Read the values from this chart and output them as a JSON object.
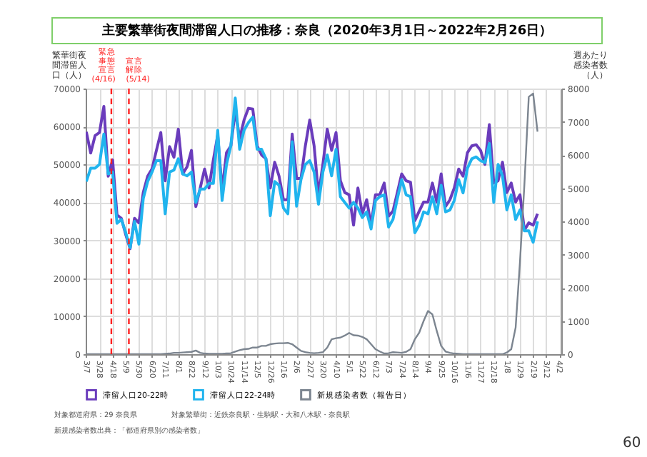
{
  "chart_data": {
    "type": "line",
    "title": "主要繁華街夜間滞留人口の推移：奈良（2020年3月1日～2022年2月26日）",
    "ylabel": "繁華街夜間滞留人口（人）",
    "y2label": "週あたり感染者数（人）",
    "x": [
      "2020-03-07",
      "2020-03-14",
      "2020-03-21",
      "2020-03-28",
      "2020-04-04",
      "2020-04-11",
      "2020-04-18",
      "2020-04-25",
      "2020-05-02",
      "2020-05-09",
      "2020-05-16",
      "2020-05-23",
      "2020-05-30",
      "2020-06-06",
      "2020-06-13",
      "2020-06-20",
      "2020-06-27",
      "2020-07-04",
      "2020-07-11",
      "2020-07-18",
      "2020-07-25",
      "2020-08-01",
      "2020-08-08",
      "2020-08-15",
      "2020-08-22",
      "2020-08-29",
      "2020-09-05",
      "2020-09-12",
      "2020-09-19",
      "2020-09-26",
      "2020-10-03",
      "2020-10-10",
      "2020-10-17",
      "2020-10-24",
      "2020-10-31",
      "2020-11-07",
      "2020-11-14",
      "2020-11-21",
      "2020-11-28",
      "2020-12-05",
      "2020-12-12",
      "2020-12-19",
      "2020-12-26",
      "2021-01-02",
      "2021-01-09",
      "2021-01-16",
      "2021-01-23",
      "2021-01-30",
      "2021-02-06",
      "2021-02-13",
      "2021-02-20",
      "2021-02-27",
      "2021-03-06",
      "2021-03-13",
      "2021-03-20",
      "2021-03-27",
      "2021-04-03",
      "2021-04-10",
      "2021-04-17",
      "2021-04-24",
      "2021-05-01",
      "2021-05-08",
      "2021-05-15",
      "2021-05-22",
      "2021-05-29",
      "2021-06-05",
      "2021-06-12",
      "2021-06-19",
      "2021-06-26",
      "2021-07-03",
      "2021-07-10",
      "2021-07-17",
      "2021-07-24",
      "2021-07-31",
      "2021-08-07",
      "2021-08-14",
      "2021-08-21",
      "2021-08-28",
      "2021-09-04",
      "2021-09-11",
      "2021-09-18",
      "2021-09-25",
      "2021-10-02",
      "2021-10-09",
      "2021-10-16",
      "2021-10-23",
      "2021-10-30",
      "2021-11-06",
      "2021-11-13",
      "2021-11-20",
      "2021-11-27",
      "2021-12-04",
      "2021-12-11",
      "2021-12-18",
      "2021-12-25",
      "2022-01-01",
      "2022-01-08",
      "2022-01-15",
      "2022-01-22",
      "2022-01-29",
      "2022-02-05",
      "2022-02-12",
      "2022-02-19",
      "2022-02-26"
    ],
    "series": [
      {
        "name": "滞留人口20-22時",
        "color": "#6a3cbc",
        "values": [
          58600,
          53000,
          57600,
          58400,
          65300,
          46900,
          51200,
          36700,
          35800,
          31500,
          27800,
          35800,
          34600,
          42600,
          46900,
          48800,
          53700,
          58400,
          45700,
          54700,
          51900,
          59300,
          47500,
          49400,
          53700,
          38900,
          43800,
          48800,
          43800,
          51200,
          57700,
          43200,
          53100,
          54900,
          64200,
          56800,
          61700,
          64800,
          64600,
          54900,
          52500,
          51500,
          43800,
          50600,
          46900,
          40700,
          40700,
          58000,
          46300,
          46300,
          54900,
          61700,
          54900,
          42000,
          50000,
          59300,
          53700,
          58400,
          45700,
          42600,
          42000,
          34000,
          43800,
          37000,
          40700,
          34000,
          42000,
          42000,
          45100,
          36400,
          37700,
          42600,
          47500,
          45700,
          45300,
          35200,
          37700,
          40100,
          40100,
          45100,
          40100,
          47500,
          38900,
          40700,
          43800,
          48800,
          46900,
          53100,
          54900,
          55200,
          53700,
          50000,
          60500,
          45100,
          45700,
          50600,
          42600,
          45100,
          40100,
          42000,
          32700,
          34600,
          34000,
          37000
        ]
      },
      {
        "name": "滞留人口22-24時",
        "color": "#20b4ee",
        "values": [
          45500,
          49000,
          49000,
          50000,
          58000,
          47500,
          48000,
          34500,
          35500,
          32000,
          28000,
          35000,
          29000,
          41000,
          45500,
          48000,
          51000,
          51000,
          37000,
          48000,
          48500,
          51500,
          47500,
          47000,
          48000,
          40000,
          43500,
          43500,
          45000,
          45000,
          59000,
          40500,
          50000,
          55000,
          67500,
          54000,
          59000,
          61000,
          62500,
          54000,
          54000,
          51500,
          36500,
          45500,
          44500,
          38500,
          37000,
          56000,
          39000,
          46000,
          50000,
          51000,
          48000,
          39500,
          48000,
          52500,
          47000,
          54000,
          41500,
          40000,
          38500,
          40000,
          38500,
          36000,
          37500,
          33000,
          40500,
          41500,
          42000,
          33500,
          35500,
          41000,
          46000,
          42000,
          41500,
          32000,
          34000,
          37500,
          37000,
          41500,
          37000,
          44500,
          37500,
          38000,
          40500,
          46000,
          42500,
          49000,
          51500,
          52000,
          51000,
          50500,
          55500,
          40000,
          50000,
          47000,
          38000,
          42000,
          35500,
          38000,
          32500,
          32500,
          29500,
          35000
        ]
      },
      {
        "name": "新規感染者数（報告日）",
        "color": "#7c8590",
        "axis": "y2",
        "values": [
          0,
          0,
          0,
          0,
          0,
          0,
          0,
          0,
          0,
          0,
          0,
          0,
          0,
          0,
          0,
          0,
          0,
          0,
          10,
          20,
          40,
          40,
          50,
          60,
          70,
          110,
          40,
          20,
          10,
          10,
          10,
          10,
          20,
          30,
          80,
          120,
          150,
          160,
          200,
          200,
          250,
          250,
          300,
          320,
          330,
          330,
          340,
          300,
          200,
          100,
          60,
          40,
          30,
          40,
          60,
          200,
          450,
          480,
          500,
          560,
          640,
          570,
          560,
          520,
          450,
          300,
          150,
          80,
          20,
          30,
          60,
          50,
          40,
          70,
          150,
          450,
          650,
          1000,
          1300,
          1200,
          700,
          250,
          80,
          40,
          20,
          10,
          0,
          0,
          0,
          0,
          0,
          0,
          0,
          0,
          0,
          0,
          50,
          150,
          800,
          2800,
          5100,
          7750,
          7850,
          6700
        ]
      }
    ],
    "xlim": [
      "2020-03-06",
      "2022-04-05"
    ],
    "xticks": [
      {
        "value": "2020-03-07",
        "label": "3/7"
      },
      {
        "value": "2020-03-28",
        "label": "3/28"
      },
      {
        "value": "2020-04-18",
        "label": "4/18"
      },
      {
        "value": "2020-05-09",
        "label": "5/9"
      },
      {
        "value": "2020-05-30",
        "label": "5/30"
      },
      {
        "value": "2020-06-20",
        "label": "6/20"
      },
      {
        "value": "2020-07-11",
        "label": "7/11"
      },
      {
        "value": "2020-08-01",
        "label": "8/1"
      },
      {
        "value": "2020-08-22",
        "label": "8/22"
      },
      {
        "value": "2020-09-12",
        "label": "9/12"
      },
      {
        "value": "2020-10-03",
        "label": "10/3"
      },
      {
        "value": "2020-10-24",
        "label": "10/24"
      },
      {
        "value": "2020-11-14",
        "label": "11/14"
      },
      {
        "value": "2020-12-05",
        "label": "12/5"
      },
      {
        "value": "2020-12-26",
        "label": "12/26"
      },
      {
        "value": "2021-01-16",
        "label": "1/16"
      },
      {
        "value": "2021-02-06",
        "label": "2/6"
      },
      {
        "value": "2021-02-27",
        "label": "2/27"
      },
      {
        "value": "2021-03-20",
        "label": "3/20"
      },
      {
        "value": "2021-04-10",
        "label": "4/10"
      },
      {
        "value": "2021-05-01",
        "label": "5/1"
      },
      {
        "value": "2021-05-22",
        "label": "5/22"
      },
      {
        "value": "2021-06-12",
        "label": "6/12"
      },
      {
        "value": "2021-07-03",
        "label": "7/3"
      },
      {
        "value": "2021-07-24",
        "label": "7/24"
      },
      {
        "value": "2021-08-14",
        "label": "8/14"
      },
      {
        "value": "2021-09-04",
        "label": "9/4"
      },
      {
        "value": "2021-09-25",
        "label": "9/25"
      },
      {
        "value": "2021-10-16",
        "label": "10/16"
      },
      {
        "value": "2021-11-06",
        "label": "11/6"
      },
      {
        "value": "2021-11-27",
        "label": "11/27"
      },
      {
        "value": "2021-12-18",
        "label": "12/18"
      },
      {
        "value": "2022-01-08",
        "label": "1/8"
      },
      {
        "value": "2022-01-29",
        "label": "1/29"
      },
      {
        "value": "2022-02-19",
        "label": "2/19"
      },
      {
        "value": "2022-03-12",
        "label": "3/12"
      },
      {
        "value": "2022-04-02",
        "label": "4/2"
      }
    ],
    "ylim": [
      0,
      70000
    ],
    "yticks": [
      0,
      10000,
      20000,
      30000,
      40000,
      50000,
      60000,
      70000
    ],
    "y2lim": [
      0,
      8000
    ],
    "y2ticks": [
      0,
      1000,
      2000,
      3000,
      4000,
      5000,
      6000,
      7000,
      8000
    ],
    "ref_lines": [
      {
        "axis": "x",
        "value": "2020-04-16",
        "label": "緊急事態宣言(4/16)",
        "color": "#ff2020",
        "line_style": "dashed"
      },
      {
        "axis": "x",
        "value": "2020-05-14",
        "label": "宣言解除(5/14)",
        "color": "#ff2020",
        "line_style": "dashed"
      }
    ],
    "grid": true,
    "legend": "bottom",
    "annotations": [
      "対象都道府県：29 奈良県",
      "対象繁華街：近鉄奈良駅・生駒駅・大和八木駅・奈良駅",
      "新規感染者数出典：「都道府県別の感染者数」",
      "60"
    ]
  }
}
